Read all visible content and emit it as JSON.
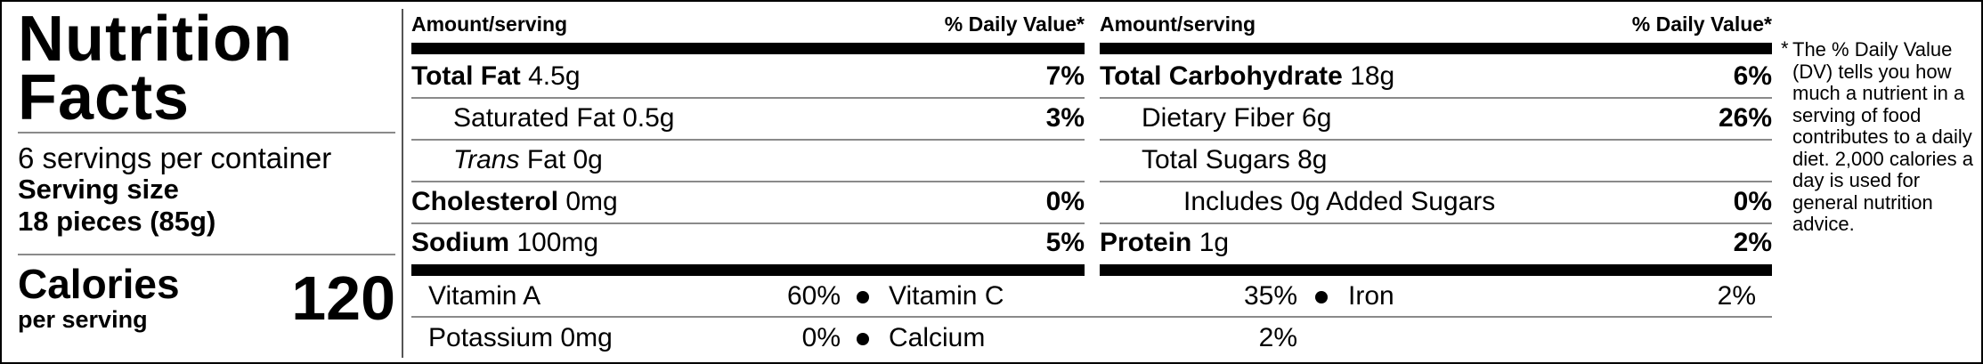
{
  "title_line1": "Nutrition",
  "title_line2": "Facts",
  "servings_per_container": "6 servings per container",
  "serving_size_label": "Serving size",
  "serving_size_value": "18 pieces (85g)",
  "calories_label": "Calories",
  "calories_sub": "per serving",
  "calories_value": "120",
  "header": {
    "amount": "Amount/serving",
    "dv": "% Daily Value*"
  },
  "left_col": {
    "total_fat": {
      "label": "Total Fat",
      "amount": "4.5g",
      "dv": "7%"
    },
    "sat_fat": {
      "label": "Saturated Fat 0.5g",
      "dv": "3%"
    },
    "trans_fat": {
      "label_italic": "Trans",
      "label_rest": "Fat 0g"
    },
    "cholesterol": {
      "label": "Cholesterol",
      "amount": "0mg",
      "dv": "0%"
    },
    "sodium": {
      "label": "Sodium",
      "amount": "100mg",
      "dv": "5%"
    }
  },
  "right_col": {
    "total_carb": {
      "label": "Total Carbohydrate",
      "amount": "18g",
      "dv": "6%"
    },
    "fiber": {
      "label": "Dietary Fiber 6g",
      "dv": "26%"
    },
    "sugars": {
      "label": "Total Sugars 8g"
    },
    "added_sugars": {
      "label": "Includes 0g Added Sugars",
      "dv": "0%"
    },
    "protein": {
      "label": "Protein",
      "amount": "1g",
      "dv": "2%"
    }
  },
  "vitamins": {
    "vit_a": {
      "label": "Vitamin A",
      "pct": "60%"
    },
    "vit_c": {
      "label": "Vitamin C",
      "pct": "35%"
    },
    "iron": {
      "label": "Iron",
      "pct": "2%"
    },
    "potassium": {
      "label": "Potassium 0mg",
      "pct": "0%"
    },
    "calcium": {
      "label": "Calcium",
      "pct": "2%"
    }
  },
  "footnote_star": "*",
  "footnote": "The % Daily Value (DV) tells you how much a nutrient in a serving of food contributes to a daily diet. 2,000 calories a day is used for general nutrition advice."
}
